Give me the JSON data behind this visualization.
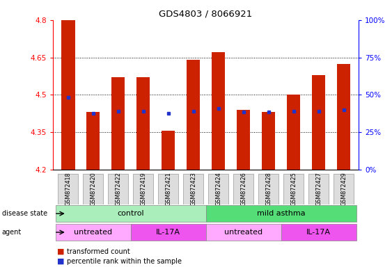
{
  "title": "GDS4803 / 8066921",
  "samples": [
    "GSM872418",
    "GSM872420",
    "GSM872422",
    "GSM872419",
    "GSM872421",
    "GSM872423",
    "GSM872424",
    "GSM872426",
    "GSM872428",
    "GSM872425",
    "GSM872427",
    "GSM872429"
  ],
  "red_values": [
    4.8,
    4.43,
    4.57,
    4.57,
    4.355,
    4.64,
    4.67,
    4.44,
    4.43,
    4.5,
    4.58,
    4.625
  ],
  "blue_values": [
    4.49,
    4.425,
    4.435,
    4.435,
    4.425,
    4.435,
    4.445,
    4.43,
    4.43,
    4.435,
    4.435,
    4.44
  ],
  "ymin": 4.2,
  "ymax": 4.8,
  "bar_color": "#CC2200",
  "blue_color": "#2233CC",
  "disease_state_groups": [
    {
      "label": "control",
      "start": 0,
      "end": 6,
      "color": "#AAEEBB"
    },
    {
      "label": "mild asthma",
      "start": 6,
      "end": 12,
      "color": "#55DD77"
    }
  ],
  "agent_groups": [
    {
      "label": "untreated",
      "start": 0,
      "end": 3,
      "color": "#FFAAFF"
    },
    {
      "label": "IL-17A",
      "start": 3,
      "end": 6,
      "color": "#EE55EE"
    },
    {
      "label": "untreated",
      "start": 6,
      "end": 9,
      "color": "#FFAAFF"
    },
    {
      "label": "IL-17A",
      "start": 9,
      "end": 12,
      "color": "#EE55EE"
    }
  ],
  "legend_items": [
    {
      "label": "transformed count",
      "color": "#CC2200"
    },
    {
      "label": "percentile rank within the sample",
      "color": "#2233CC"
    }
  ]
}
